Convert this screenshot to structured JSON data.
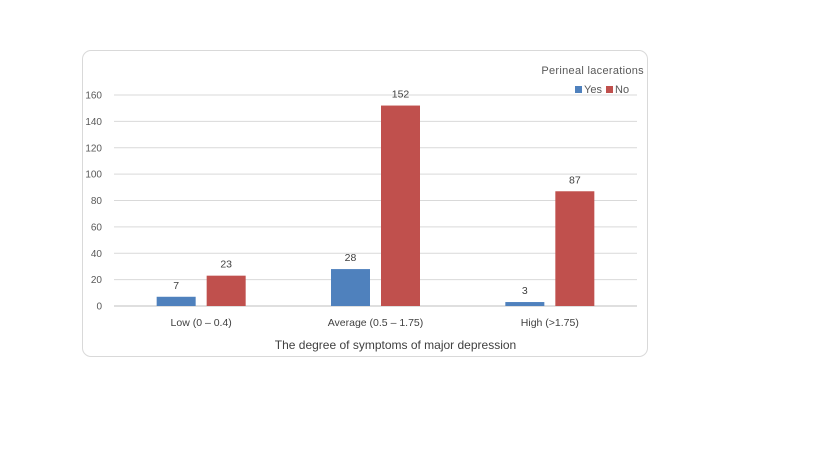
{
  "chart_data": {
    "type": "bar",
    "title": "",
    "xlabel": "The degree of symptoms of major depression",
    "ylabel": "",
    "categories": [
      "Low (0 – 0.4)",
      "Average (0.5 – 1.75)",
      "High (>1.75)"
    ],
    "series": [
      {
        "name": "Yes",
        "values": [
          7,
          28,
          3
        ],
        "color": "#4f81bd"
      },
      {
        "name": "No",
        "values": [
          23,
          152,
          87
        ],
        "color": "#c0504d"
      }
    ],
    "ylim": [
      0,
      160
    ],
    "yticks": [
      0,
      20,
      40,
      60,
      80,
      100,
      120,
      140,
      160
    ],
    "grid": true,
    "legend_title": "Perineal lacerations",
    "legend_position": "top-right"
  }
}
